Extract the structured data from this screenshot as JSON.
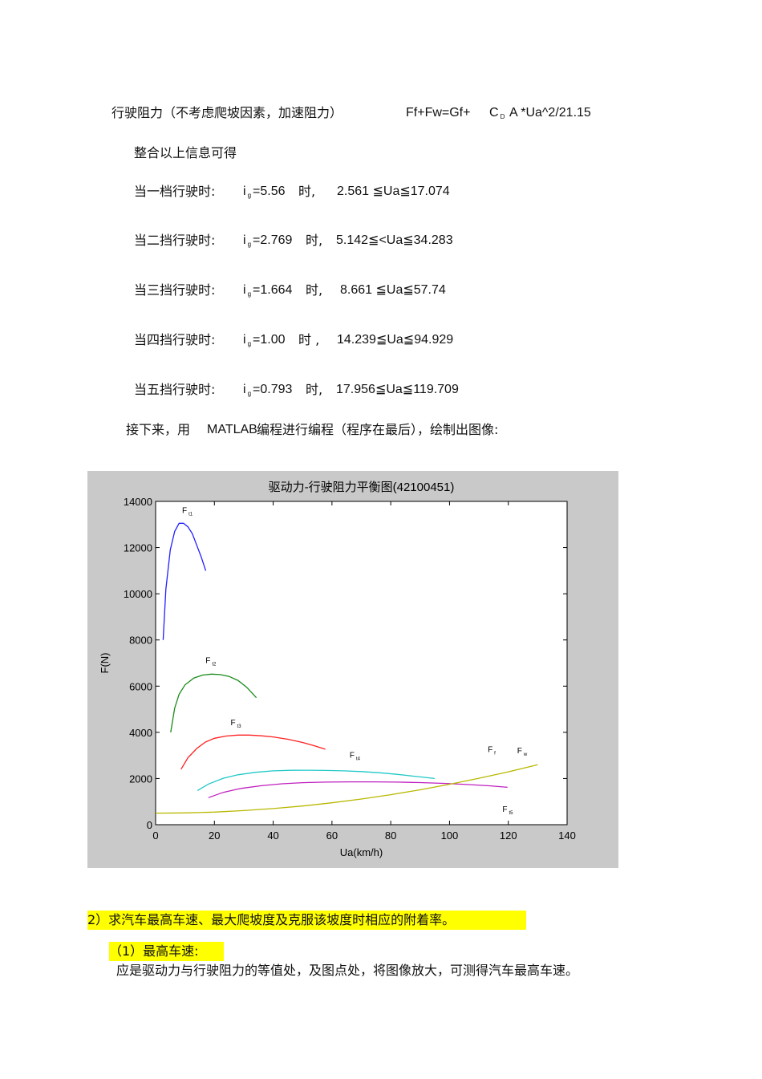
{
  "resistance_line": {
    "label": "行驶阻力（不考虑爬坡因素，加速阻力）",
    "formula_pre": "Ff+Fw=Gf+",
    "formula_c": "C",
    "formula_sub": "D",
    "formula_post": "A *Ua^2/21.15"
  },
  "summary": "整合以上信息可得",
  "gears": [
    {
      "label": "当一档行驶时:",
      "i": "i",
      "sub": "g",
      "value": "=5.56",
      "when": "时,",
      "range": "2.561  ≦Ua≦17.074"
    },
    {
      "label": "当二挡行驶时:",
      "i": "i",
      "sub": "g",
      "value": "=2.769",
      "when": "时,",
      "range": "5.142≦<Ua≦34.283"
    },
    {
      "label": "当三挡行驶时:",
      "i": "i",
      "sub": "g",
      "value": "=1.664",
      "when": "时,",
      "range": "8.661  ≦Ua≦57.74"
    },
    {
      "label": "当四挡行驶时:",
      "i": "i",
      "sub": "g",
      "value": "=1.00",
      "when": "时  ,",
      "range": "14.239≦Ua≦94.929"
    },
    {
      "label": "当五挡行驶时:",
      "i": "i",
      "sub": "g",
      "value": "=0.793",
      "when": "时,",
      "range": "17.956≦Ua≦119.709"
    }
  ],
  "next_line": {
    "pre": "接下来，用",
    "tool": "MATLAB",
    "post": "编程进行编程（程序在最后），绘制出图像:"
  },
  "section2": "2）求汽车最高车速、最大爬坡度及克服该坡度时相应的附着率。",
  "sub1": "（1）最高车速:",
  "sub1_text": "应是驱动力与行驶阻力的等值处，及图点处，将图像放大，可测得汽车最高车速。",
  "chart_data": {
    "type": "line",
    "title": "驱动力-行驶阻力平衡图(42100451)",
    "xlabel": "Ua(km/h)",
    "ylabel": "F(N)",
    "xlim": [
      0,
      140
    ],
    "ylim": [
      0,
      14000
    ],
    "xticks": [
      0,
      20,
      40,
      60,
      80,
      100,
      120,
      140
    ],
    "yticks": [
      0,
      2000,
      4000,
      6000,
      8000,
      10000,
      12000,
      14000
    ],
    "series": [
      {
        "name": "Ft1",
        "color": "#2020ff",
        "x": [
          2.56,
          3.5,
          5,
          6.5,
          8,
          9.5,
          11,
          12.5,
          14,
          15.5,
          17.07
        ],
        "y": [
          8000,
          10200,
          11900,
          12700,
          13050,
          13050,
          12900,
          12600,
          12100,
          11600,
          11000
        ]
      },
      {
        "name": "Ft2",
        "color": "#1a8a1a",
        "x": [
          5.14,
          6.5,
          8,
          10,
          13,
          16,
          19,
          22,
          25,
          28,
          31,
          34.28
        ],
        "y": [
          4000,
          5050,
          5650,
          6050,
          6350,
          6480,
          6520,
          6500,
          6420,
          6250,
          5950,
          5500
        ]
      },
      {
        "name": "Ft3",
        "color": "#ff2020",
        "x": [
          8.66,
          11,
          14,
          17,
          20,
          24,
          28,
          32,
          36,
          40,
          45,
          50,
          54,
          57.74
        ],
        "y": [
          2400,
          2900,
          3300,
          3580,
          3740,
          3840,
          3880,
          3880,
          3850,
          3800,
          3700,
          3560,
          3420,
          3270
        ]
      },
      {
        "name": "Ft4",
        "color": "#20c8c8",
        "x": [
          14.24,
          18,
          23,
          28,
          34,
          40,
          46,
          52,
          58,
          64,
          70,
          76,
          82,
          88,
          94.93
        ],
        "y": [
          1480,
          1760,
          2010,
          2160,
          2270,
          2330,
          2355,
          2360,
          2350,
          2330,
          2300,
          2250,
          2180,
          2100,
          2000
        ]
      },
      {
        "name": "Ft5",
        "color": "#c020c0",
        "x": [
          17.96,
          23,
          29,
          36,
          43,
          50,
          58,
          66,
          74,
          82,
          90,
          98,
          106,
          114,
          119.71
        ],
        "y": [
          1170,
          1400,
          1570,
          1690,
          1770,
          1820,
          1845,
          1855,
          1855,
          1845,
          1825,
          1790,
          1740,
          1680,
          1620
        ]
      },
      {
        "name": "Ff+Fw",
        "color": "#b8b800",
        "x": [
          0,
          10,
          20,
          30,
          40,
          50,
          60,
          70,
          80,
          90,
          100,
          110,
          120,
          130
        ],
        "y": [
          500,
          510,
          545,
          610,
          700,
          810,
          950,
          1110,
          1300,
          1510,
          1750,
          2010,
          2290,
          2600
        ]
      }
    ],
    "labels": {
      "ft1": {
        "main": "F",
        "sub": "t1"
      },
      "ft2": {
        "main": "F",
        "sub": "t2"
      },
      "ft3": {
        "main": "F",
        "sub": "t3"
      },
      "ft4": {
        "main": "F",
        "sub": "t4"
      },
      "ft5": {
        "main": "F",
        "sub": "t5"
      },
      "ff": {
        "main": "F",
        "sub": "f"
      },
      "fw": {
        "main": "F",
        "sub": "w"
      }
    },
    "grid": false
  }
}
